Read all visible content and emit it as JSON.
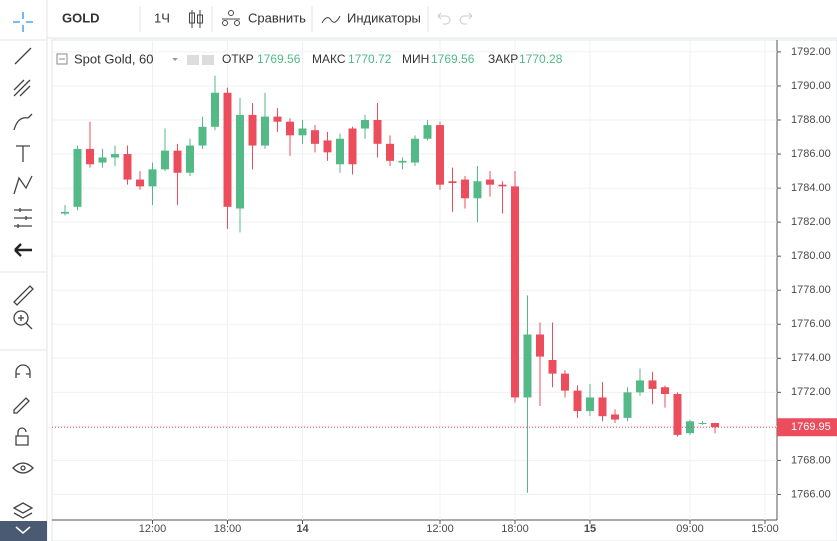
{
  "toolbar": {
    "symbol": "GOLD",
    "interval": "1Ч",
    "compare": "Сравнить",
    "indicators": "Индикаторы"
  },
  "legend": {
    "title": "Spot Gold, 60",
    "open_label": "ОТКР",
    "open": 1769.56,
    "high_label": "МАКС",
    "high": 1770.72,
    "low_label": "МИН",
    "low": 1769.56,
    "close_label": "ЗАКР",
    "close": 1770.28
  },
  "chart_data": {
    "type": "candlestick",
    "up_color": "#53b987",
    "down_color": "#eb4d5c",
    "categories": [
      null,
      null,
      null,
      null,
      null,
      null,
      null,
      "12:00",
      null,
      null,
      null,
      null,
      null,
      "18:00",
      null,
      null,
      null,
      null,
      null,
      "14",
      null,
      null,
      null,
      null,
      null,
      null,
      null,
      null,
      null,
      null,
      "12:00",
      null,
      null,
      null,
      null,
      null,
      "18:00",
      null,
      null,
      null,
      null,
      null,
      "15",
      null,
      null,
      null,
      null,
      null,
      null,
      null,
      "09:00",
      null,
      null,
      null,
      null,
      null,
      "15:00"
    ],
    "open": [
      1782.5,
      1782.9,
      1786.3,
      1785.5,
      1785.8,
      1786.0,
      1784.5,
      1784.1,
      1785.1,
      1786.2,
      1784.9,
      1786.5,
      1787.6,
      1789.6,
      1782.8,
      1788.3,
      1786.5,
      1788.2,
      1787.9,
      1787.1,
      1787.4,
      1786.8,
      1785.4,
      1787.5,
      1787.5,
      1788.0,
      1786.6,
      1785.5,
      1785.5,
      1786.9,
      1787.7,
      1784.4,
      1784.5,
      1783.4,
      1784.5,
      1784.2,
      1784.1,
      1771.7,
      1775.4,
      1773.9,
      1773.1,
      1772.1,
      1770.9,
      1771.7,
      1770.7,
      1770.5,
      1772.0,
      1772.7,
      1772.3,
      1771.9,
      1769.6,
      1770.2,
      1770.2,
      null,
      null,
      null,
      null
    ],
    "high": [
      1783.0,
      1786.5,
      1787.9,
      1786.3,
      1786.5,
      1786.5,
      1785.0,
      1785.5,
      1787.5,
      1786.6,
      1786.9,
      1788.2,
      1790.6,
      1789.9,
      1789.3,
      1789.0,
      1789.6,
      1788.7,
      1788.1,
      1788.0,
      1787.7,
      1787.3,
      1787.2,
      1787.6,
      1788.3,
      1789.0,
      1787.1,
      1785.8,
      1787.1,
      1788.0,
      1787.9,
      1785.2,
      1784.7,
      1785.3,
      1785.0,
      1784.4,
      1785.0,
      1777.7,
      1776.1,
      1776.1,
      1773.3,
      1772.4,
      1772.5,
      1772.6,
      1771.0,
      1772.3,
      1773.4,
      1773.2,
      1772.4,
      1772.0,
      1770.4,
      1770.3,
      1770.2,
      null,
      null,
      null,
      null
    ],
    "low": [
      1782.4,
      1782.7,
      1785.2,
      1785.2,
      1785.3,
      1784.2,
      1783.9,
      1783.0,
      1785.0,
      1783.0,
      1784.7,
      1786.3,
      1787.4,
      1781.6,
      1781.4,
      1785.1,
      1786.3,
      1787.3,
      1785.9,
      1786.6,
      1786.1,
      1785.6,
      1784.9,
      1784.8,
      1786.9,
      1785.8,
      1785.3,
      1785.1,
      1785.3,
      1786.8,
      1783.9,
      1782.6,
      1782.8,
      1782.0,
      1783.5,
      1782.5,
      1771.4,
      1766.1,
      1771.2,
      1772.3,
      1771.7,
      1770.5,
      1770.6,
      1770.3,
      1770.2,
      1770.3,
      1771.8,
      1771.3,
      1771.1,
      1769.4,
      1769.5,
      1770.1,
      1769.6,
      null,
      null,
      null,
      null
    ],
    "close": [
      1782.6,
      1786.3,
      1785.4,
      1785.8,
      1786.0,
      1784.5,
      1784.1,
      1785.1,
      1786.2,
      1784.9,
      1786.5,
      1787.6,
      1789.6,
      1782.9,
      1788.3,
      1786.5,
      1788.2,
      1787.9,
      1787.1,
      1787.5,
      1786.6,
      1786.1,
      1786.9,
      1785.4,
      1788.0,
      1786.6,
      1785.6,
      1785.6,
      1786.9,
      1787.7,
      1784.2,
      1784.3,
      1783.4,
      1784.4,
      1784.2,
      1784.1,
      1771.7,
      1775.4,
      1774.1,
      1773.1,
      1772.1,
      1770.9,
      1771.7,
      1770.6,
      1770.4,
      1772.0,
      1772.7,
      1772.2,
      1771.9,
      1769.5,
      1770.3,
      1770.2,
      1769.95,
      null,
      null,
      null,
      null
    ],
    "last_price": 1769.95,
    "last_price_color": "#eb4d5c",
    "ylim": [
      1764.5,
      1792.7
    ],
    "yticks": [
      {
        "value": 1766,
        "label": "1766.00"
      },
      {
        "value": 1768,
        "label": "1768.00"
      },
      {
        "value": 1770,
        "label": "1770.00"
      },
      {
        "value": 1772,
        "label": "1772.00"
      },
      {
        "value": 1774,
        "label": "1774.00"
      },
      {
        "value": 1776,
        "label": "1776.00"
      },
      {
        "value": 1778,
        "label": "1778.00"
      },
      {
        "value": 1780,
        "label": "1780.00"
      },
      {
        "value": 1782,
        "label": "1782.00"
      },
      {
        "value": 1784,
        "label": "1784.00"
      },
      {
        "value": 1786,
        "label": "1786.00"
      },
      {
        "value": 1788,
        "label": "1788.00"
      },
      {
        "value": 1790,
        "label": "1790.00"
      },
      {
        "value": 1792,
        "label": "1792.00"
      }
    ],
    "grid": true
  }
}
